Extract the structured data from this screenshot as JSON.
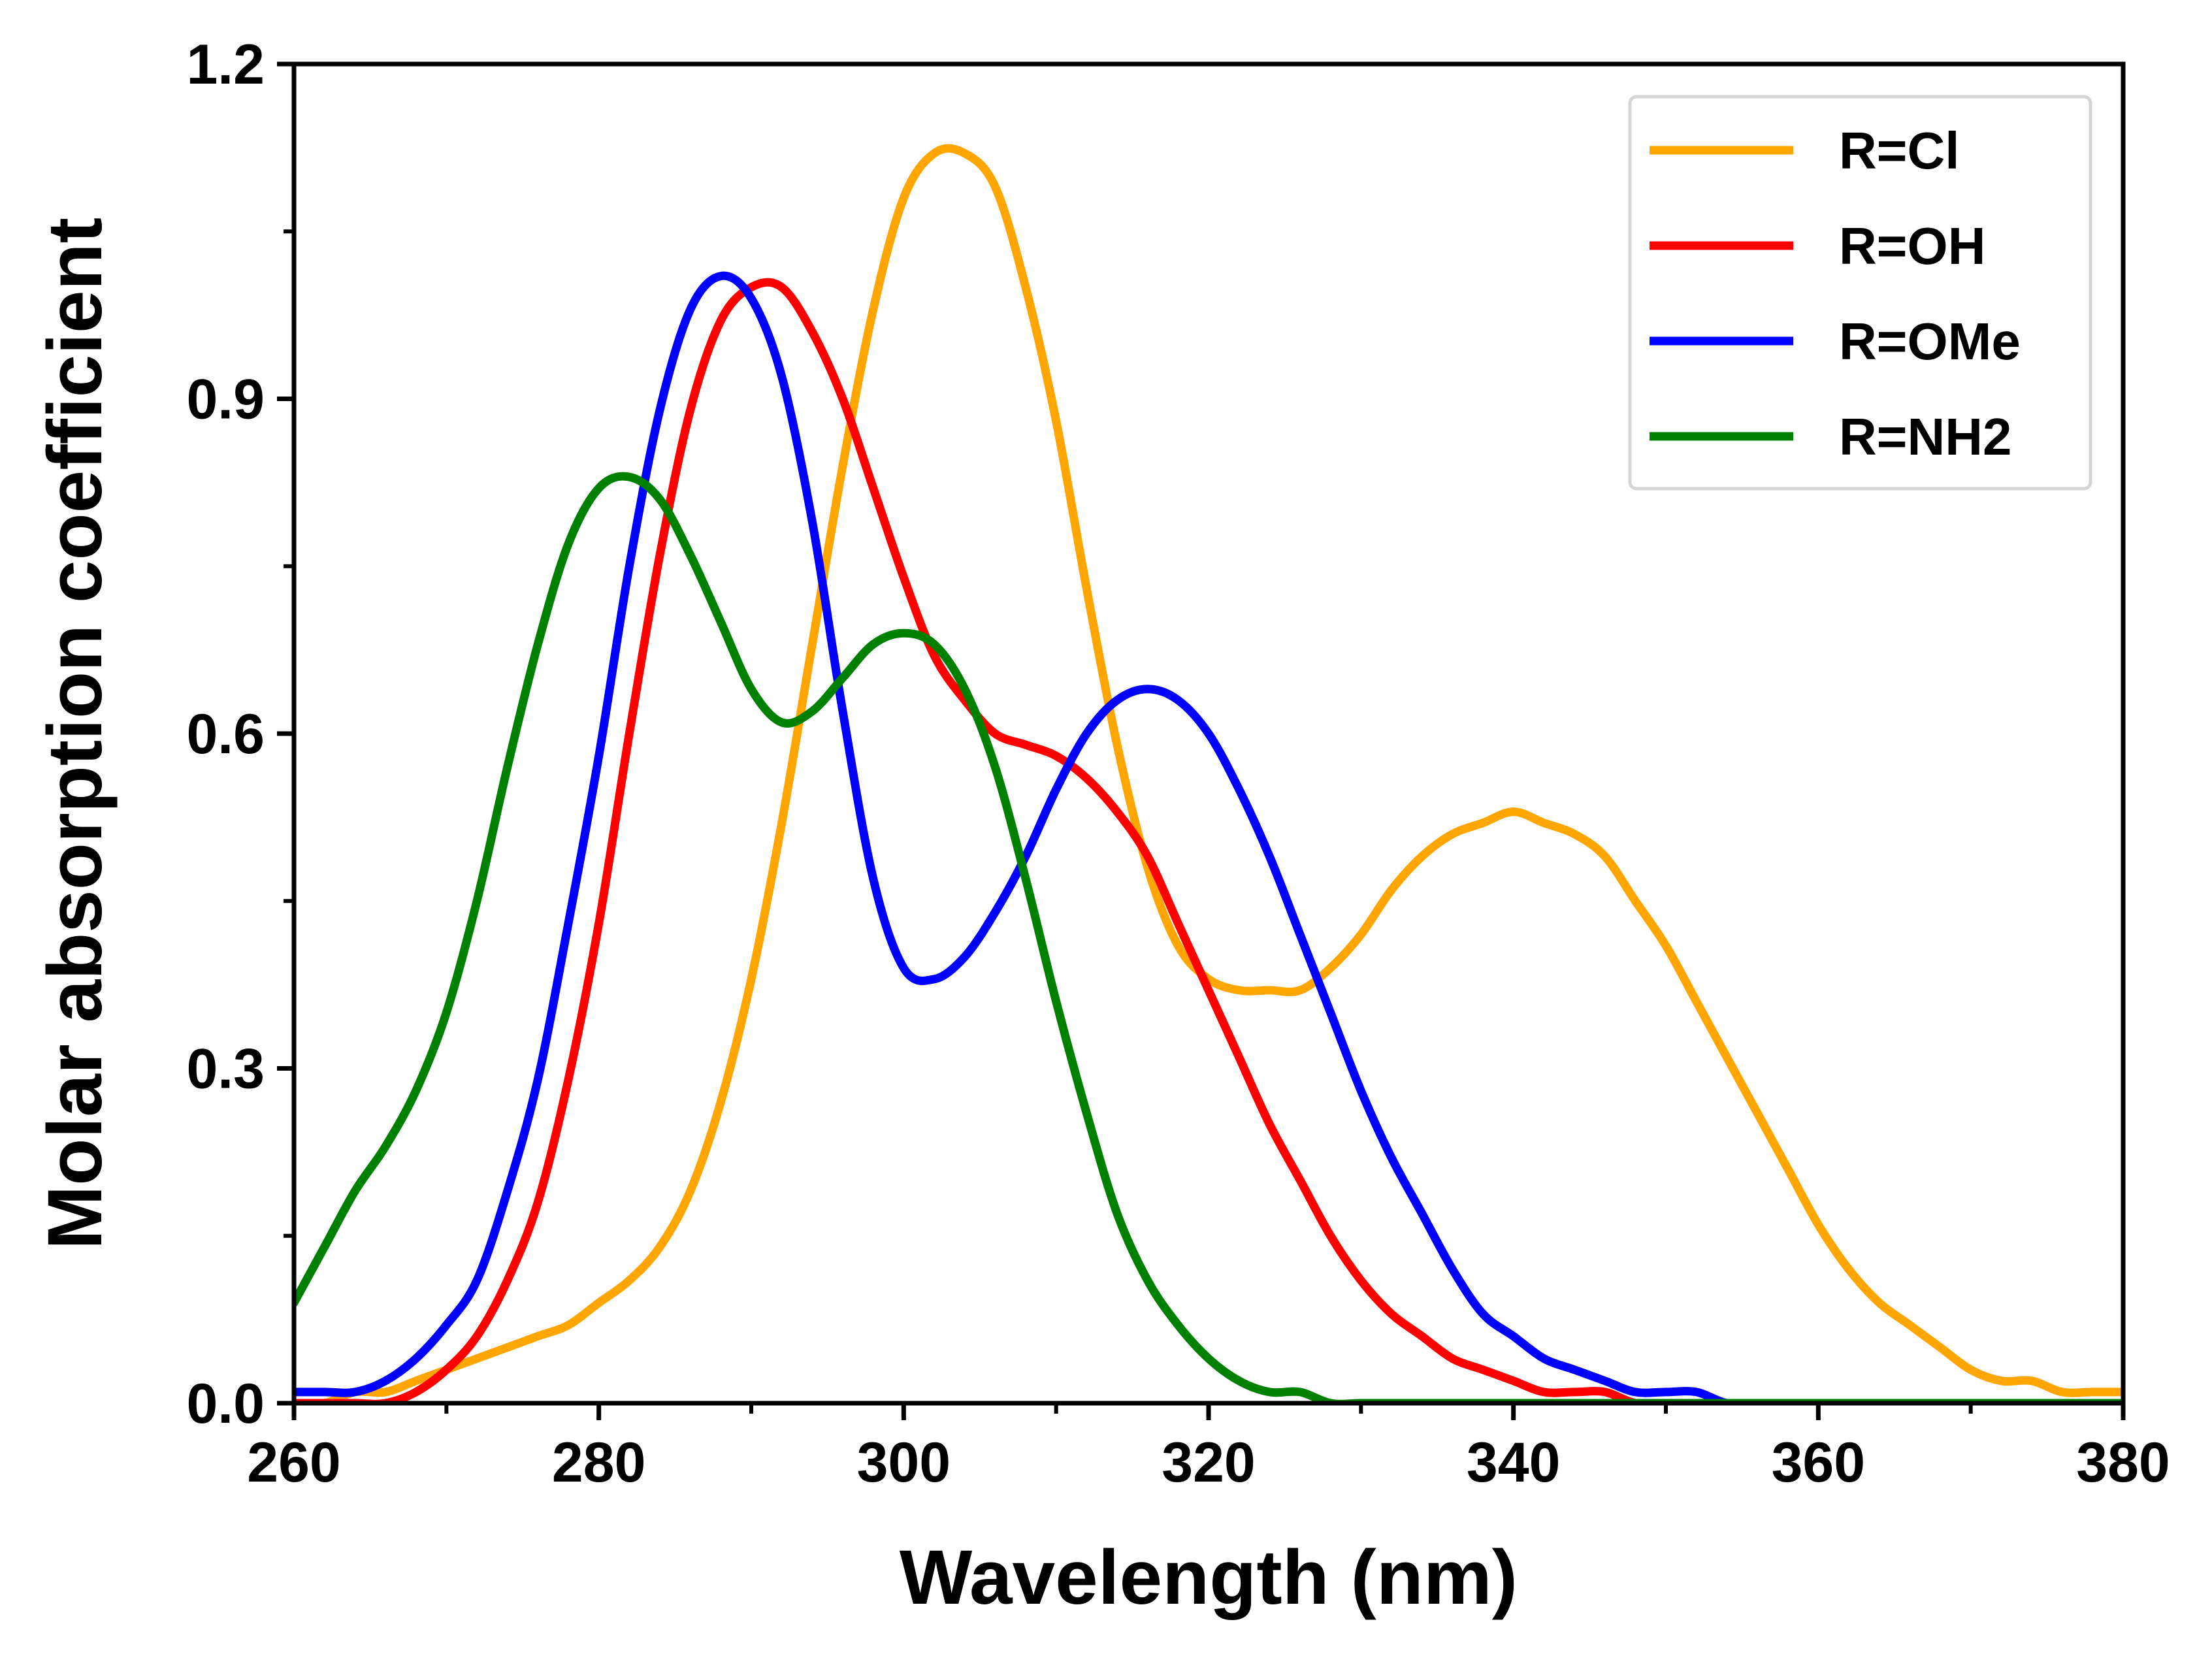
{
  "chart_data": {
    "type": "line",
    "title": "",
    "xlabel": "Wavelength (nm)",
    "ylabel": "Molar absorption coefficient",
    "xlim": [
      260,
      380
    ],
    "ylim": [
      0.0,
      1.2
    ],
    "x_ticks": [
      260,
      280,
      300,
      320,
      340,
      360,
      380
    ],
    "x_tick_labels": [
      "260",
      "280",
      "300",
      "320",
      "340",
      "360",
      "380"
    ],
    "x_minor_ticks": [
      270,
      290,
      310,
      330,
      350,
      370
    ],
    "y_ticks": [
      0.0,
      0.3,
      0.6,
      0.9,
      1.2
    ],
    "y_tick_labels": [
      "0.0",
      "0.3",
      "0.6",
      "0.9",
      "1.2"
    ],
    "y_minor_ticks": [
      0.15,
      0.45,
      0.75,
      1.05
    ],
    "grid": false,
    "legend_position": "top-right",
    "series": [
      {
        "name": "R=Cl",
        "color": "#FFA500",
        "x": [
          260,
          262,
          264,
          266,
          268,
          270,
          272,
          274,
          276,
          278,
          280,
          282,
          284,
          286,
          288,
          290,
          292,
          294,
          296,
          298,
          300,
          302,
          304,
          306,
          308,
          310,
          312,
          314,
          316,
          318,
          320,
          322,
          324,
          326,
          328,
          330,
          332,
          334,
          336,
          338,
          340,
          342,
          344,
          346,
          348,
          350,
          352,
          354,
          356,
          358,
          360,
          362,
          364,
          366,
          368,
          370,
          372,
          374,
          376,
          378,
          380
        ],
        "y": [
          0.0,
          0.0,
          0.01,
          0.01,
          0.02,
          0.03,
          0.04,
          0.05,
          0.06,
          0.07,
          0.09,
          0.11,
          0.14,
          0.19,
          0.27,
          0.38,
          0.52,
          0.68,
          0.84,
          0.98,
          1.08,
          1.12,
          1.12,
          1.09,
          1.0,
          0.88,
          0.73,
          0.59,
          0.48,
          0.41,
          0.38,
          0.37,
          0.37,
          0.37,
          0.39,
          0.42,
          0.46,
          0.49,
          0.51,
          0.52,
          0.53,
          0.52,
          0.51,
          0.49,
          0.45,
          0.41,
          0.36,
          0.31,
          0.26,
          0.21,
          0.16,
          0.12,
          0.09,
          0.07,
          0.05,
          0.03,
          0.02,
          0.02,
          0.01,
          0.01,
          0.01
        ]
      },
      {
        "name": "R=OH",
        "color": "#FF0000",
        "x": [
          260,
          262,
          264,
          266,
          268,
          270,
          272,
          274,
          276,
          278,
          280,
          282,
          284,
          286,
          288,
          290,
          292,
          294,
          296,
          298,
          300,
          302,
          304,
          306,
          308,
          310,
          312,
          314,
          316,
          318,
          320,
          322,
          324,
          326,
          328,
          330,
          332,
          334,
          336,
          338,
          340,
          342,
          344,
          346,
          348,
          350,
          352,
          354,
          356,
          358,
          360,
          362,
          364,
          366,
          368,
          370,
          372,
          374,
          376,
          378,
          380
        ],
        "y": [
          0.0,
          0.0,
          0.0,
          0.0,
          0.01,
          0.03,
          0.06,
          0.11,
          0.18,
          0.29,
          0.43,
          0.6,
          0.76,
          0.89,
          0.97,
          1.0,
          1.0,
          0.96,
          0.9,
          0.82,
          0.74,
          0.67,
          0.63,
          0.6,
          0.59,
          0.58,
          0.56,
          0.53,
          0.49,
          0.43,
          0.37,
          0.31,
          0.25,
          0.2,
          0.15,
          0.11,
          0.08,
          0.06,
          0.04,
          0.03,
          0.02,
          0.01,
          0.01,
          0.01,
          0.0,
          0.0,
          0.0,
          0.0,
          0.0,
          0.0,
          0.0,
          0.0,
          0.0,
          0.0,
          0.0,
          0.0,
          0.0,
          0.0,
          0.0,
          0.0,
          0.0
        ]
      },
      {
        "name": "R=OMe",
        "color": "#0000FF",
        "x": [
          260,
          262,
          264,
          266,
          268,
          270,
          272,
          274,
          276,
          278,
          280,
          282,
          284,
          286,
          288,
          290,
          292,
          294,
          296,
          298,
          300,
          302,
          304,
          306,
          308,
          310,
          312,
          314,
          316,
          318,
          320,
          322,
          324,
          326,
          328,
          330,
          332,
          334,
          336,
          338,
          340,
          342,
          344,
          346,
          348,
          350,
          352,
          354,
          356,
          358,
          360,
          362,
          364,
          366,
          368,
          370,
          372,
          374,
          376,
          378,
          380
        ],
        "y": [
          0.01,
          0.01,
          0.01,
          0.02,
          0.04,
          0.07,
          0.11,
          0.19,
          0.29,
          0.43,
          0.58,
          0.75,
          0.89,
          0.98,
          1.01,
          0.99,
          0.92,
          0.79,
          0.62,
          0.47,
          0.39,
          0.38,
          0.4,
          0.44,
          0.49,
          0.55,
          0.6,
          0.63,
          0.64,
          0.63,
          0.6,
          0.55,
          0.49,
          0.42,
          0.35,
          0.28,
          0.22,
          0.17,
          0.12,
          0.08,
          0.06,
          0.04,
          0.03,
          0.02,
          0.01,
          0.01,
          0.01,
          0.0,
          0.0,
          0.0,
          0.0,
          0.0,
          0.0,
          0.0,
          0.0,
          0.0,
          0.0,
          0.0,
          0.0,
          0.0,
          0.0
        ]
      },
      {
        "name": "R=NH2",
        "color": "#008000",
        "x": [
          260,
          262,
          264,
          266,
          268,
          270,
          272,
          274,
          276,
          278,
          280,
          282,
          284,
          286,
          288,
          290,
          292,
          294,
          296,
          298,
          300,
          302,
          304,
          306,
          308,
          310,
          312,
          314,
          316,
          318,
          320,
          322,
          324,
          326,
          328,
          330,
          332,
          334,
          336,
          338,
          340,
          342,
          344,
          346,
          348,
          350,
          352,
          354,
          356,
          358,
          360,
          362,
          364,
          366,
          368,
          370,
          372,
          374,
          376,
          378,
          380
        ],
        "y": [
          0.09,
          0.14,
          0.19,
          0.23,
          0.28,
          0.35,
          0.45,
          0.57,
          0.68,
          0.77,
          0.82,
          0.83,
          0.81,
          0.76,
          0.7,
          0.64,
          0.61,
          0.62,
          0.65,
          0.68,
          0.69,
          0.68,
          0.64,
          0.57,
          0.47,
          0.36,
          0.26,
          0.17,
          0.11,
          0.07,
          0.04,
          0.02,
          0.01,
          0.01,
          0.0,
          0.0,
          0.0,
          0.0,
          0.0,
          0.0,
          0.0,
          0.0,
          0.0,
          0.0,
          0.0,
          0.0,
          0.0,
          0.0,
          0.0,
          0.0,
          0.0,
          0.0,
          0.0,
          0.0,
          0.0,
          0.0,
          0.0,
          0.0,
          0.0,
          0.0,
          0.0
        ]
      }
    ]
  }
}
